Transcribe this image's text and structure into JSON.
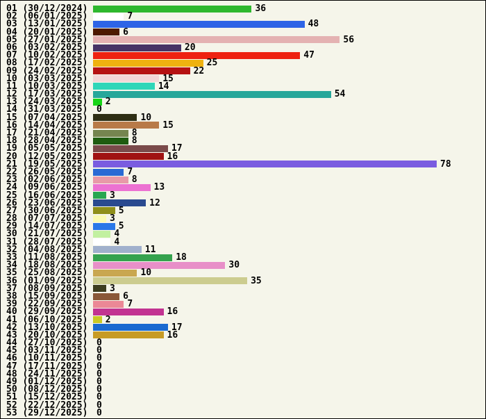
{
  "chart_data": {
    "type": "bar",
    "orientation": "horizontal",
    "title": "",
    "xlabel": "",
    "ylabel": "",
    "xmax": 78,
    "grid": false,
    "legend": false,
    "background_color": "#f5f5ea",
    "rows": [
      {
        "label": "01 (30/12/2024)",
        "value": 36,
        "color": "#2eb82e"
      },
      {
        "label": "02 (06/01/2025)",
        "value": 7,
        "color": "#ffffff"
      },
      {
        "label": "03 (13/01/2025)",
        "value": 48,
        "color": "#2e64e6"
      },
      {
        "label": "04 (20/01/2025)",
        "value": 6,
        "color": "#4d1a00"
      },
      {
        "label": "05 (27/01/2025)",
        "value": 56,
        "color": "#e4b2b2"
      },
      {
        "label": "06 (03/02/2025)",
        "value": 20,
        "color": "#463366"
      },
      {
        "label": "07 (10/02/2025)",
        "value": 47,
        "color": "#ee2211"
      },
      {
        "label": "08 (17/02/2025)",
        "value": 25,
        "color": "#efb210"
      },
      {
        "label": "09 (24/02/2025)",
        "value": 22,
        "color": "#b51212"
      },
      {
        "label": "10 (03/03/2025)",
        "value": 15,
        "color": "#f2d6d6"
      },
      {
        "label": "11 (10/03/2025)",
        "value": 14,
        "color": "#2fd6b8"
      },
      {
        "label": "12 (17/03/2025)",
        "value": 54,
        "color": "#27a79a"
      },
      {
        "label": "13 (24/03/2025)",
        "value": 2,
        "color": "#17d417"
      },
      {
        "label": "14 (31/03/2025)",
        "value": 0,
        "color": null
      },
      {
        "label": "15 (07/04/2025)",
        "value": 10,
        "color": "#2e2e14"
      },
      {
        "label": "16 (14/04/2025)",
        "value": 15,
        "color": "#b87a48"
      },
      {
        "label": "17 (21/04/2025)",
        "value": 8,
        "color": "#75854f"
      },
      {
        "label": "18 (28/04/2025)",
        "value": 8,
        "color": "#1f5c10"
      },
      {
        "label": "19 (05/05/2025)",
        "value": 17,
        "color": "#7a4a4a"
      },
      {
        "label": "20 (12/05/2025)",
        "value": 16,
        "color": "#a01212"
      },
      {
        "label": "21 (19/05/2025)",
        "value": 78,
        "color": "#7a5ce0"
      },
      {
        "label": "22 (26/05/2025)",
        "value": 7,
        "color": "#2a6ad4"
      },
      {
        "label": "23 (02/06/2025)",
        "value": 8,
        "color": "#e89aa8"
      },
      {
        "label": "24 (09/06/2025)",
        "value": 13,
        "color": "#ec72d2"
      },
      {
        "label": "25 (16/06/2025)",
        "value": 3,
        "color": "#28a650"
      },
      {
        "label": "26 (23/06/2025)",
        "value": 12,
        "color": "#2a4a8f"
      },
      {
        "label": "27 (30/06/2025)",
        "value": 5,
        "color": "#8f8f1a"
      },
      {
        "label": "28 (07/07/2025)",
        "value": 3,
        "color": "#fbfbb4"
      },
      {
        "label": "29 (14/07/2025)",
        "value": 5,
        "color": "#2a78e8"
      },
      {
        "label": "30 (21/07/2025)",
        "value": 4,
        "color": "#c2f0a0"
      },
      {
        "label": "31 (28/07/2025)",
        "value": 4,
        "color": "#ffffff"
      },
      {
        "label": "32 (04/08/2025)",
        "value": 11,
        "color": "#a0b0cc"
      },
      {
        "label": "33 (11/08/2025)",
        "value": 18,
        "color": "#35a24e"
      },
      {
        "label": "34 (18/08/2025)",
        "value": 30,
        "color": "#e88fc8"
      },
      {
        "label": "35 (25/08/2025)",
        "value": 10,
        "color": "#c9a750"
      },
      {
        "label": "36 (01/09/2025)",
        "value": 35,
        "color": "#cccc8f"
      },
      {
        "label": "37 (08/09/2025)",
        "value": 3,
        "color": "#3d3d1f"
      },
      {
        "label": "38 (15/09/2025)",
        "value": 6,
        "color": "#8a5838"
      },
      {
        "label": "39 (22/09/2025)",
        "value": 7,
        "color": "#eb8896"
      },
      {
        "label": "40 (29/09/2025)",
        "value": 16,
        "color": "#c23391"
      },
      {
        "label": "41 (06/10/2025)",
        "value": 2,
        "color": "#c9c925"
      },
      {
        "label": "42 (13/10/2025)",
        "value": 17,
        "color": "#1a6ad0"
      },
      {
        "label": "43 (20/10/2025)",
        "value": 16,
        "color": "#c79b25"
      },
      {
        "label": "44 (27/10/2025)",
        "value": 0,
        "color": null
      },
      {
        "label": "45 (03/11/2025)",
        "value": 0,
        "color": null
      },
      {
        "label": "46 (10/11/2025)",
        "value": 0,
        "color": null
      },
      {
        "label": "47 (17/11/2025)",
        "value": 0,
        "color": null
      },
      {
        "label": "48 (24/11/2025)",
        "value": 0,
        "color": null
      },
      {
        "label": "49 (01/12/2025)",
        "value": 0,
        "color": null
      },
      {
        "label": "50 (08/12/2025)",
        "value": 0,
        "color": null
      },
      {
        "label": "51 (15/12/2025)",
        "value": 0,
        "color": null
      },
      {
        "label": "52 (22/12/2025)",
        "value": 0,
        "color": null
      },
      {
        "label": "53 (29/12/2025)",
        "value": 0,
        "color": null
      }
    ]
  }
}
